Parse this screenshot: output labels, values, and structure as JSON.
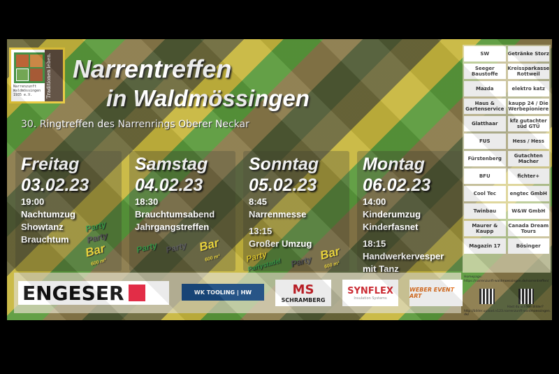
{
  "logo": {
    "side_text": "Traditionen leben.",
    "club": "Narrenzunft Waldmössingen 1935 e.V."
  },
  "title_line1": "Narrentreffen",
  "title_line2": "in Waldmössingen",
  "subtitle": "30. Ringtreffen des Narrenrings Oberer Neckar",
  "days": [
    {
      "name": "Freitag",
      "date": "03.02.23",
      "events": [
        "19:00",
        "Nachtumzug",
        "Showtanz",
        "Brauchtum"
      ]
    },
    {
      "name": "Samstag",
      "date": "04.02.23",
      "events": [
        "18:30",
        "Brauchtumsabend",
        "Jahrgangstreffen"
      ]
    },
    {
      "name": "Sonntag",
      "date": "05.02.23",
      "events": [
        "8:45",
        "Narrenmesse",
        "13:15",
        "Großer Umzug"
      ]
    },
    {
      "name": "Montag",
      "date": "06.02.23",
      "events": [
        "14:00",
        "Kinderumzug",
        "Kinderfasnet",
        "18:15",
        "Handwerkervesper",
        "mit Tanz"
      ]
    }
  ],
  "party": {
    "party": "Party",
    "bar": "Bar",
    "bar_size": "600 m²",
    "partystadel": "Partystadel"
  },
  "sponsors": [
    "SW",
    "Getränke Storz",
    "Seeger Baustoffe",
    "Kreissparkasse Rottweil",
    "Mazda",
    "elektro katz",
    "Haus & Gartenservice",
    "kaupp 24 / Die Werbepioniere",
    "Glatthaar",
    "kfz gutachter süd GTÜ",
    "FUS",
    "Hess / Hess",
    "Fürstenberg",
    "Gutachten Macher",
    "BFU",
    "fichter+",
    "Cool Tec",
    "engtec GmbH",
    "Twinbau",
    "W&W GmbH",
    "Maurer & Kaupp",
    "Canada Dream Tours",
    "Magazin 17",
    "Bösinger"
  ],
  "bottom_sponsors": {
    "engeser": "ENGESER",
    "wk": "WK TOOLING | HW",
    "schramberg": "SCHRAMBERG",
    "synflex": "SYNFLEX",
    "synflex_sub": "Insulation Systems",
    "weber": "WEBER EVENT ART"
  },
  "homepage": {
    "label": "Homepage:",
    "url": "https://narrenzunft-waldmoessingen.de/narrentreffen/",
    "photos_label": "Hast du schöne Bilder?",
    "photos_url": "http://bilder.upload.n123.narrenzunft-waldmoessingen.de/"
  },
  "colors": {
    "green": "#5a9a3c",
    "yellow": "#e8d030",
    "brown": "#6e6a3c",
    "engeser_red": "#e0203c"
  }
}
